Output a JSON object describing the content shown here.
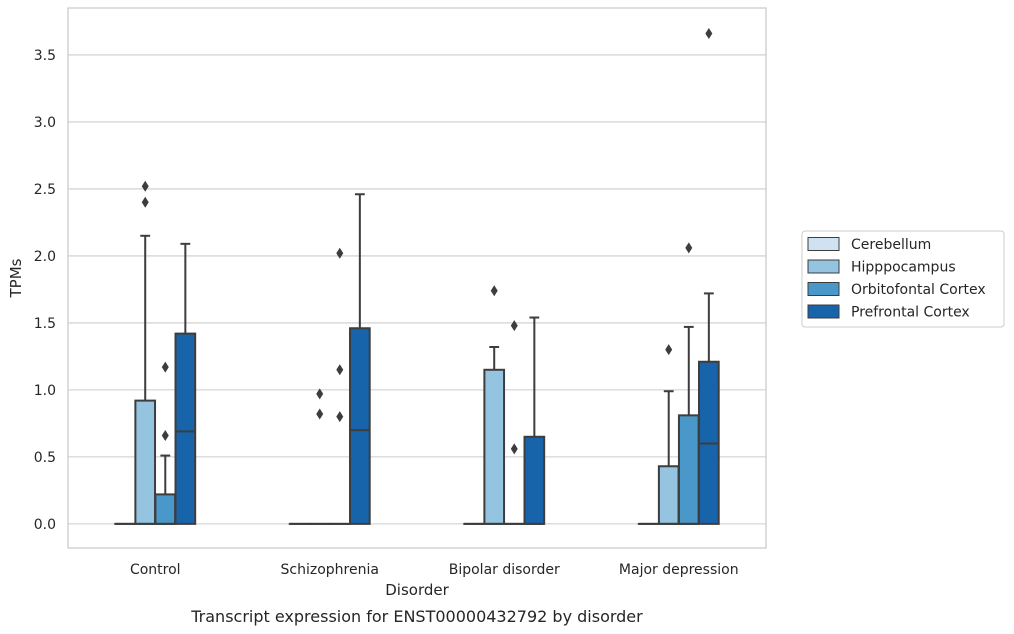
{
  "chart_data": {
    "type": "box",
    "caption": "Transcript expression for ENST00000432792 by disorder",
    "xlabel": "Disorder",
    "ylabel": "TPMs",
    "ylim": [
      -0.18,
      3.85
    ],
    "yticks": [
      "0.0",
      "0.5",
      "1.0",
      "1.5",
      "2.0",
      "2.5",
      "3.0",
      "3.5"
    ],
    "grid": "horizontal",
    "legend_position": "right",
    "categories": [
      "Control",
      "Schizophrenia",
      "Bipolar disorder",
      "Major depression"
    ],
    "series": [
      {
        "name": "Cerebellum",
        "color": "#d0e1f2",
        "boxes": [
          {
            "q1": 0,
            "median": 0,
            "q3": 0,
            "whisker_low": 0,
            "whisker_high": 0,
            "outliers": []
          },
          {
            "q1": 0,
            "median": 0,
            "q3": 0,
            "whisker_low": 0,
            "whisker_high": 0,
            "outliers": []
          },
          {
            "q1": 0,
            "median": 0,
            "q3": 0,
            "whisker_low": 0,
            "whisker_high": 0,
            "outliers": []
          },
          {
            "q1": 0,
            "median": 0,
            "q3": 0,
            "whisker_low": 0,
            "whisker_high": 0,
            "outliers": []
          }
        ]
      },
      {
        "name": "Hipppocampus",
        "color": "#94c4df",
        "boxes": [
          {
            "q1": 0,
            "median": 0,
            "q3": 0.92,
            "whisker_low": 0,
            "whisker_high": 2.15,
            "outliers": [
              2.4,
              2.52
            ]
          },
          {
            "q1": 0,
            "median": 0,
            "q3": 0,
            "whisker_low": 0,
            "whisker_high": 0,
            "outliers": [
              0.82,
              0.97
            ]
          },
          {
            "q1": 0,
            "median": 0,
            "q3": 1.15,
            "whisker_low": 0,
            "whisker_high": 1.32,
            "outliers": [
              1.74
            ]
          },
          {
            "q1": 0,
            "median": 0,
            "q3": 0.43,
            "whisker_low": 0,
            "whisker_high": 0.99,
            "outliers": [
              1.3
            ]
          }
        ]
      },
      {
        "name": "Orbitofontal Cortex",
        "color": "#4a98c9",
        "boxes": [
          {
            "q1": 0,
            "median": 0,
            "q3": 0.22,
            "whisker_low": 0,
            "whisker_high": 0.51,
            "outliers": [
              0.66,
              1.17
            ]
          },
          {
            "q1": 0,
            "median": 0,
            "q3": 0,
            "whisker_low": 0,
            "whisker_high": 0,
            "outliers": [
              0.8,
              1.15,
              2.02
            ]
          },
          {
            "q1": 0,
            "median": 0,
            "q3": 0,
            "whisker_low": 0,
            "whisker_high": 0,
            "outliers": [
              0.56,
              1.48
            ]
          },
          {
            "q1": 0,
            "median": 0,
            "q3": 0.81,
            "whisker_low": 0,
            "whisker_high": 1.47,
            "outliers": [
              2.06
            ]
          }
        ]
      },
      {
        "name": "Prefrontal Cortex",
        "color": "#1764ab",
        "boxes": [
          {
            "q1": 0,
            "median": 0.69,
            "q3": 1.42,
            "whisker_low": 0,
            "whisker_high": 2.09,
            "outliers": []
          },
          {
            "q1": 0,
            "median": 0.7,
            "q3": 1.46,
            "whisker_low": 0,
            "whisker_high": 2.46,
            "outliers": []
          },
          {
            "q1": 0,
            "median": 0,
            "q3": 0.65,
            "whisker_low": 0,
            "whisker_high": 1.54,
            "outliers": []
          },
          {
            "q1": 0,
            "median": 0.6,
            "q3": 1.21,
            "whisker_low": 0,
            "whisker_high": 1.72,
            "outliers": [
              3.66
            ]
          }
        ]
      }
    ]
  }
}
